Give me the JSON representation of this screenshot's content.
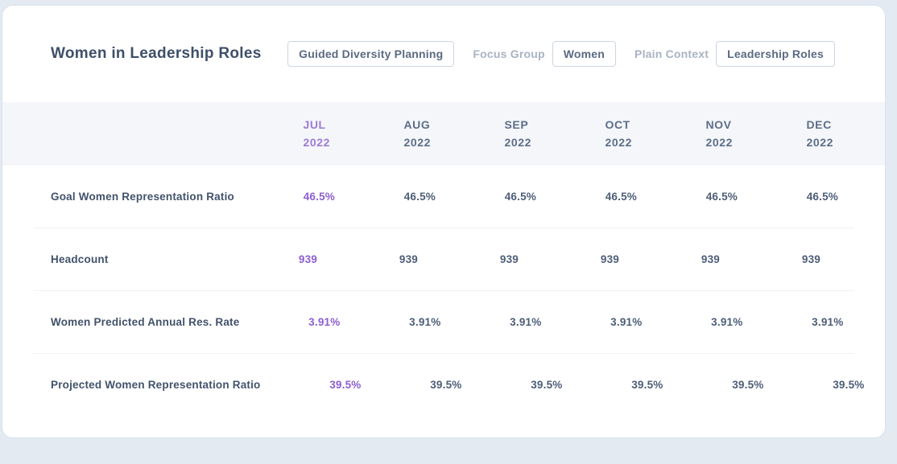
{
  "header": {
    "title": "Women in Leadership Roles",
    "primary_button": "Guided Diversity Planning",
    "focus_group_label": "Focus Group",
    "focus_group_value": "Women",
    "plain_context_label": "Plain Context",
    "plain_context_value": "Leadership Roles"
  },
  "table": {
    "columns": [
      {
        "month": "JUL",
        "year": "2022",
        "highlighted": true
      },
      {
        "month": "AUG",
        "year": "2022",
        "highlighted": false
      },
      {
        "month": "SEP",
        "year": "2022",
        "highlighted": false
      },
      {
        "month": "OCT",
        "year": "2022",
        "highlighted": false
      },
      {
        "month": "NOV",
        "year": "2022",
        "highlighted": false
      },
      {
        "month": "DEC",
        "year": "2022",
        "highlighted": false
      }
    ],
    "rows": [
      {
        "label": "Goal Women Representation Ratio",
        "values": [
          "46.5%",
          "46.5%",
          "46.5%",
          "46.5%",
          "46.5%",
          "46.5%"
        ]
      },
      {
        "label": "Headcount",
        "values": [
          "939",
          "939",
          "939",
          "939",
          "939",
          "939"
        ]
      },
      {
        "label": "Women Predicted Annual Res. Rate",
        "values": [
          "3.91%",
          "3.91%",
          "3.91%",
          "3.91%",
          "3.91%",
          "3.91%"
        ]
      },
      {
        "label": "Projected Women Representation Ratio",
        "values": [
          "39.5%",
          "39.5%",
          "39.5%",
          "39.5%",
          "39.5%",
          "39.5%"
        ]
      }
    ]
  },
  "colors": {
    "accent_purple_header": "#9c7bd6",
    "accent_purple_value": "#8d5fd3",
    "text_dark": "#42526b",
    "text_muted": "#a9b3c2",
    "header_band_bg": "#f4f6fa",
    "page_bg": "#e4eaf1"
  }
}
